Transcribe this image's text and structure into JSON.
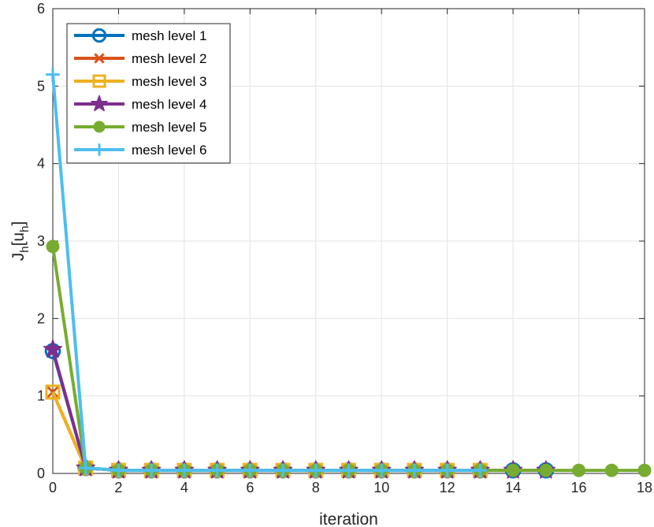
{
  "chart_data": {
    "type": "line",
    "xlabel": "iteration",
    "ylabel_main": "J",
    "ylabel_sub1": "h",
    "ylabel_mid": "[u",
    "ylabel_sub2": "h",
    "ylabel_end": "]",
    "xlim": [
      0,
      18
    ],
    "ylim": [
      0,
      6
    ],
    "xticks": [
      0,
      2,
      4,
      6,
      8,
      10,
      12,
      14,
      16,
      18
    ],
    "yticks": [
      0,
      1,
      2,
      3,
      4,
      5,
      6
    ],
    "grid": true,
    "legend_position": "top-left",
    "series": [
      {
        "name": "mesh level 1",
        "color": "#0072BD",
        "marker": "circle",
        "x": [
          0,
          1,
          2,
          3,
          4,
          5,
          6,
          7,
          8,
          9,
          10,
          11,
          12,
          13,
          14,
          15
        ],
        "y": [
          1.58,
          0.07,
          0.04,
          0.04,
          0.04,
          0.04,
          0.04,
          0.04,
          0.04,
          0.04,
          0.04,
          0.04,
          0.04,
          0.04,
          0.04,
          0.04
        ]
      },
      {
        "name": "mesh level 2",
        "color": "#D95319",
        "marker": "x",
        "x": [
          0,
          1,
          2,
          3,
          4,
          5,
          6,
          7,
          8,
          9,
          10,
          11,
          12,
          13
        ],
        "y": [
          1.05,
          0.07,
          0.04,
          0.04,
          0.04,
          0.04,
          0.04,
          0.04,
          0.04,
          0.04,
          0.04,
          0.04,
          0.04,
          0.04
        ]
      },
      {
        "name": "mesh level 3",
        "color": "#EDB120",
        "marker": "square",
        "x": [
          0,
          1,
          2,
          3,
          4,
          5,
          6,
          7,
          8,
          9,
          10,
          11,
          12,
          13
        ],
        "y": [
          1.05,
          0.07,
          0.04,
          0.04,
          0.04,
          0.04,
          0.04,
          0.04,
          0.04,
          0.04,
          0.04,
          0.04,
          0.04,
          0.04
        ]
      },
      {
        "name": "mesh level 4",
        "color": "#7E2F8E",
        "marker": "star",
        "x": [
          0,
          1,
          2,
          3,
          4,
          5,
          6,
          7,
          8,
          9,
          10,
          11,
          12,
          13,
          14,
          15
        ],
        "y": [
          1.6,
          0.07,
          0.04,
          0.04,
          0.04,
          0.04,
          0.04,
          0.04,
          0.04,
          0.04,
          0.04,
          0.04,
          0.04,
          0.04,
          0.04,
          0.04
        ]
      },
      {
        "name": "mesh level 5",
        "color": "#77AC30",
        "marker": "dot",
        "x": [
          0,
          1,
          2,
          3,
          4,
          5,
          6,
          7,
          8,
          9,
          10,
          11,
          12,
          13,
          14,
          15,
          16,
          17,
          18
        ],
        "y": [
          2.93,
          0.07,
          0.04,
          0.04,
          0.04,
          0.04,
          0.04,
          0.04,
          0.04,
          0.04,
          0.04,
          0.04,
          0.04,
          0.04,
          0.04,
          0.04,
          0.04,
          0.04,
          0.04
        ]
      },
      {
        "name": "mesh level 6",
        "color": "#4DBEEE",
        "marker": "plus",
        "x": [
          0,
          1,
          2,
          3,
          4,
          5,
          6,
          7,
          8,
          9,
          10,
          11,
          12,
          13
        ],
        "y": [
          5.15,
          0.07,
          0.04,
          0.04,
          0.04,
          0.04,
          0.04,
          0.04,
          0.04,
          0.04,
          0.04,
          0.04,
          0.04,
          0.04
        ]
      }
    ]
  }
}
